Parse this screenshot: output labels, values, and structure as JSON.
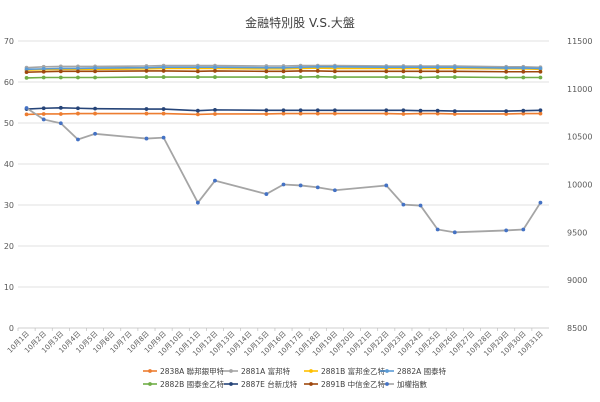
{
  "chart_data": {
    "type": "line",
    "title": "金融特別股 V.S.大盤",
    "xlabel": "",
    "ylabel": "",
    "categories": [
      "10月1日",
      "10月2日",
      "10月3日",
      "10月4日",
      "10月5日",
      "10月6日",
      "10月7日",
      "10月8日",
      "10月9日",
      "10月10日",
      "10月11日",
      "10月12日",
      "10月13日",
      "10月14日",
      "10月15日",
      "10月16日",
      "10月17日",
      "10月18日",
      "10月19日",
      "10月20日",
      "10月21日",
      "10月22日",
      "10月23日",
      "10月24日",
      "10月25日",
      "10月26日",
      "10月27日",
      "10月28日",
      "10月29日",
      "10月30日",
      "10月31日"
    ],
    "ylim": [
      0,
      70
    ],
    "y_ticks": [
      0,
      10,
      20,
      30,
      40,
      50,
      60,
      70
    ],
    "y2lim": [
      8500,
      11500
    ],
    "y2_ticks": [
      8500,
      9000,
      9500,
      10000,
      10500,
      11000,
      11500
    ],
    "legend_position": "bottom",
    "grid": true,
    "series": [
      {
        "name": "2838A 聯邦銀甲特",
        "color": "#ED7D31",
        "axis": "left",
        "values": [
          52.1,
          52.2,
          52.2,
          52.3,
          52.3,
          null,
          null,
          52.3,
          52.3,
          null,
          52.1,
          52.2,
          null,
          null,
          52.2,
          52.3,
          52.3,
          52.3,
          52.3,
          null,
          null,
          52.3,
          52.2,
          52.3,
          52.3,
          52.2,
          null,
          null,
          52.2,
          52.3,
          52.3
        ]
      },
      {
        "name": "2881A 富邦特",
        "color": "#A5A5A5",
        "axis": "left",
        "values": [
          63.5,
          63.7,
          63.8,
          63.8,
          63.8,
          null,
          null,
          63.9,
          64.0,
          null,
          64.0,
          64.0,
          null,
          null,
          63.9,
          63.9,
          64.0,
          64.0,
          64.0,
          null,
          null,
          63.9,
          63.9,
          63.9,
          63.9,
          63.9,
          null,
          null,
          63.7,
          63.7,
          63.6
        ]
      },
      {
        "name": "2881B 富邦金乙特",
        "color": "#FFC000",
        "axis": "left",
        "values": [
          62.9,
          63.0,
          63.1,
          63.1,
          63.1,
          null,
          null,
          63.2,
          63.3,
          null,
          63.3,
          63.3,
          null,
          null,
          63.2,
          63.2,
          63.3,
          63.4,
          63.3,
          null,
          null,
          63.3,
          63.3,
          63.3,
          63.3,
          63.3,
          null,
          null,
          63.2,
          63.2,
          63.1
        ]
      },
      {
        "name": "2882A 國泰特",
        "color": "#5B9BD5",
        "axis": "left",
        "values": [
          63.1,
          63.2,
          63.3,
          63.3,
          63.4,
          null,
          null,
          63.5,
          63.6,
          null,
          63.6,
          63.6,
          null,
          null,
          63.5,
          63.5,
          63.6,
          63.7,
          63.7,
          null,
          null,
          63.6,
          63.6,
          63.6,
          63.6,
          63.6,
          null,
          null,
          63.4,
          63.4,
          63.3
        ]
      },
      {
        "name": "2882B 國泰金乙特",
        "color": "#70AD47",
        "axis": "left",
        "values": [
          61.0,
          61.1,
          61.1,
          61.1,
          61.1,
          null,
          null,
          61.2,
          61.2,
          null,
          61.2,
          61.2,
          null,
          null,
          61.2,
          61.2,
          61.2,
          61.3,
          61.2,
          null,
          null,
          61.2,
          61.2,
          61.1,
          61.2,
          61.2,
          null,
          null,
          61.1,
          61.1,
          61.1
        ]
      },
      {
        "name": "2887E 台新戊特",
        "color": "#264478",
        "axis": "left",
        "values": [
          53.4,
          53.6,
          53.7,
          53.6,
          53.5,
          null,
          null,
          53.4,
          53.4,
          null,
          53.0,
          53.2,
          null,
          null,
          53.1,
          53.1,
          53.1,
          53.1,
          53.1,
          null,
          null,
          53.1,
          53.1,
          53.0,
          53.0,
          52.9,
          null,
          null,
          52.9,
          53.0,
          53.1
        ]
      },
      {
        "name": "2891B 中信金乙特",
        "color": "#9E480E",
        "axis": "left",
        "values": [
          62.4,
          62.5,
          62.6,
          62.6,
          62.6,
          null,
          null,
          62.7,
          62.7,
          null,
          62.6,
          62.7,
          null,
          null,
          62.6,
          62.6,
          62.7,
          62.7,
          62.6,
          null,
          null,
          62.6,
          62.6,
          62.6,
          62.6,
          62.6,
          null,
          null,
          62.5,
          62.5,
          62.5
        ]
      },
      {
        "name": "加權指數",
        "color": "#A5A5A5",
        "axis": "right",
        "marker_color": "#4472C4",
        "values": [
          10800,
          10680,
          10640,
          10470,
          10530,
          null,
          null,
          10480,
          10490,
          null,
          9810,
          10040,
          null,
          null,
          9900,
          10000,
          9990,
          9970,
          9940,
          null,
          null,
          9990,
          9790,
          9780,
          9530,
          9500,
          null,
          null,
          9520,
          9530,
          9810
        ]
      }
    ]
  }
}
